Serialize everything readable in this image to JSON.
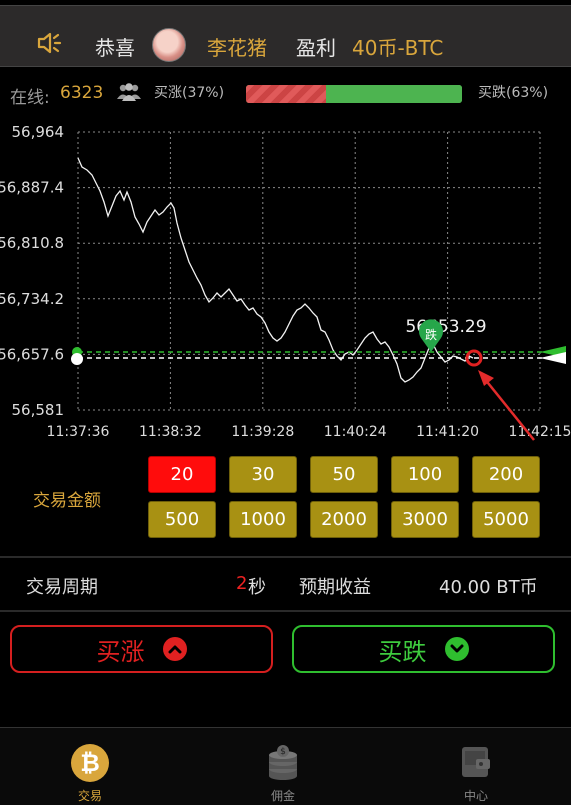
{
  "announcement": {
    "prefix": "恭喜",
    "name": "李花猪",
    "profit_label": "盈利",
    "amount": "40币-BTC"
  },
  "online": {
    "label": "在线:",
    "count": "6323",
    "up_label": "买涨(37%)",
    "down_label": "买跌(63%)",
    "up_ratio": 0.37,
    "down_ratio": 0.63
  },
  "chart": {
    "y_ticks": [
      "56,964",
      "56,887.4",
      "56,810.8",
      "56,734.2",
      "56,657.6",
      "56,581"
    ],
    "x_ticks": [
      "11:37:36",
      "11:38:32",
      "11:39:28",
      "11:40:24",
      "11:41:20",
      "11:42:15"
    ],
    "price_label": "56653.29",
    "marker_text": "跌"
  },
  "amounts": {
    "label": "交易金额",
    "options": [
      "20",
      "30",
      "50",
      "100",
      "200",
      "500",
      "1000",
      "2000",
      "3000",
      "5000"
    ],
    "selected": "20"
  },
  "period": {
    "label": "交易周期",
    "value": "2",
    "unit": "秒"
  },
  "expected": {
    "label": "预期收益",
    "value": "40.00 BT币"
  },
  "buttons": {
    "buy_up": "买涨",
    "buy_down": "买跌"
  },
  "nav": {
    "items": [
      {
        "label": "交易",
        "icon": "bitcoin-icon"
      },
      {
        "label": "佣金",
        "icon": "coins-icon"
      },
      {
        "label": "中心",
        "icon": "wallet-icon"
      }
    ]
  },
  "colors": {
    "gold": "#d9a63c",
    "red": "#e02121",
    "green": "#2fbe2f",
    "amount_button": "#a89113"
  }
}
